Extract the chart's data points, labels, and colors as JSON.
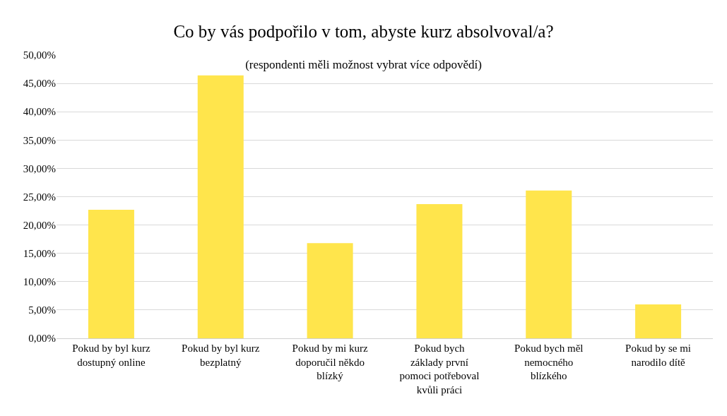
{
  "chart_data": {
    "type": "bar",
    "title": "Co by vás podpořilo v tom, abyste kurz absolvoval/a?",
    "subtitle": "(respondenti měli možnost vybrat více odpovědí)",
    "categories": [
      "Pokud by byl kurz dostupný online",
      "Pokud by byl kurz bezplatný",
      "Pokud by mi kurz doporučil někdo blízký",
      "Pokud bych základy první pomoci potřeboval kvůli práci",
      "Pokud bych měl nemocného blízkého",
      "Pokud by se mi narodilo dítě"
    ],
    "values": [
      22.7,
      46.4,
      16.8,
      23.7,
      26.1,
      6.0
    ],
    "color": "#ffe54c",
    "ylim": [
      0,
      50
    ],
    "yticks": [
      {
        "value": 0,
        "label": "0,00%"
      },
      {
        "value": 5,
        "label": "5,00%"
      },
      {
        "value": 10,
        "label": "10,00%"
      },
      {
        "value": 15,
        "label": "15,00%"
      },
      {
        "value": 20,
        "label": "20,00%"
      },
      {
        "value": 25,
        "label": "25,00%"
      },
      {
        "value": 30,
        "label": "30,00%"
      },
      {
        "value": 35,
        "label": "35,00%"
      },
      {
        "value": 40,
        "label": "40,00%"
      },
      {
        "value": 45,
        "label": "45,00%"
      },
      {
        "value": 50,
        "label": "50,00%"
      }
    ],
    "grid": "y"
  }
}
